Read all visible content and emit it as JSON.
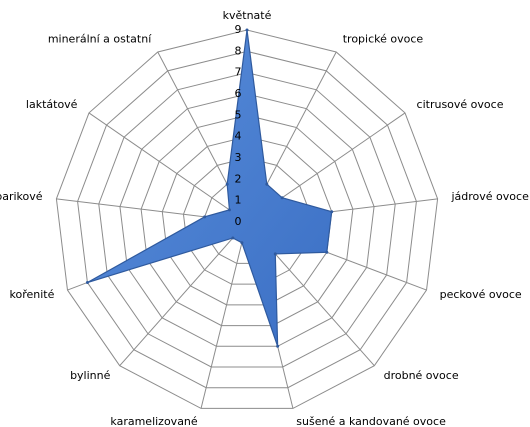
{
  "chart_data": {
    "type": "radar",
    "categories": [
      "květnaté",
      "tropické ovoce",
      "citrusové ovoce",
      "jádrové ovoce",
      "peckové ovoce",
      "drobné ovoce",
      "sušené a kandované ovoce",
      "karamelizované",
      "bylinné",
      "kořenité",
      "barikové",
      "laktátové",
      "minerální a ostatní"
    ],
    "values": [
      9,
      2,
      2,
      4,
      4,
      2,
      6,
      1,
      1,
      8,
      2,
      1,
      2
    ],
    "color": "#3b6fc4",
    "rlim": [
      0,
      9
    ],
    "rticks": [
      0,
      1,
      2,
      3,
      4,
      5,
      6,
      7,
      8,
      9
    ],
    "grid": true
  }
}
